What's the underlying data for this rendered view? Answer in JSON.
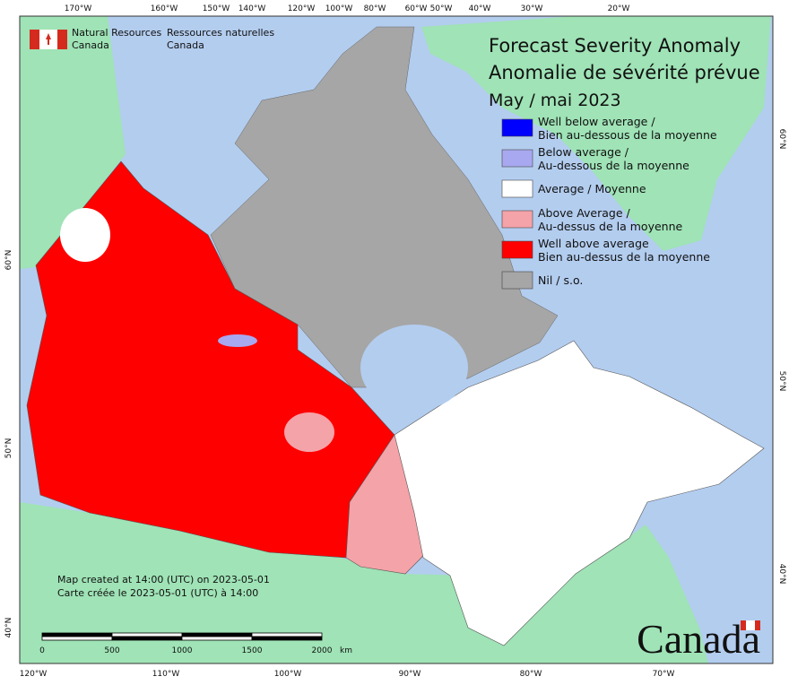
{
  "header": {
    "agency_en": [
      "Natural Resources",
      "Canada"
    ],
    "agency_fr": [
      "Ressources naturelles",
      "Canada"
    ]
  },
  "title": [
    "Forecast Severity Anomaly",
    "Anomalie de sévérité prévue",
    "May / mai 2023"
  ],
  "legend": [
    {
      "lines": [
        "Well below average /",
        "Bien au-dessous de la moyenne"
      ],
      "color": "#0000ff"
    },
    {
      "lines": [
        "Below average /",
        "Au-dessous de la moyenne"
      ],
      "color": "#a8a8f0"
    },
    {
      "lines": [
        "Average / Moyenne"
      ],
      "color": "#ffffff"
    },
    {
      "lines": [
        "Above Average /",
        "Au-dessus de la moyenne"
      ],
      "color": "#f4a3a8"
    },
    {
      "lines": [
        "Well above average",
        "Bien au-dessus de la moyenne"
      ],
      "color": "#ff0000"
    },
    {
      "lines": [
        "Nil / s.o."
      ],
      "color": "#a6a6a6"
    }
  ],
  "credit": [
    "Map created at 14:00 (UTC) on 2023-05-01",
    "Carte créée le 2023-05-01 (UTC) à 14:00"
  ],
  "scale_bar": {
    "ticks": [
      0,
      500,
      1000,
      1500,
      2000
    ],
    "unit": "km"
  },
  "wordmark": "Canada",
  "graticule": {
    "top": [
      "170°W",
      "160°W",
      "150°W",
      "140°W",
      "120°W",
      "100°W",
      "80°W",
      "60°W",
      "50°W",
      "40°W",
      "30°W",
      "20°W"
    ],
    "bottom": [
      "120°W",
      "110°W",
      "100°W",
      "90°W",
      "80°W",
      "70°W"
    ],
    "left": [
      "60°N",
      "50°N",
      "40°N"
    ],
    "right": [
      "60°N",
      "50°N",
      "40°N"
    ]
  }
}
